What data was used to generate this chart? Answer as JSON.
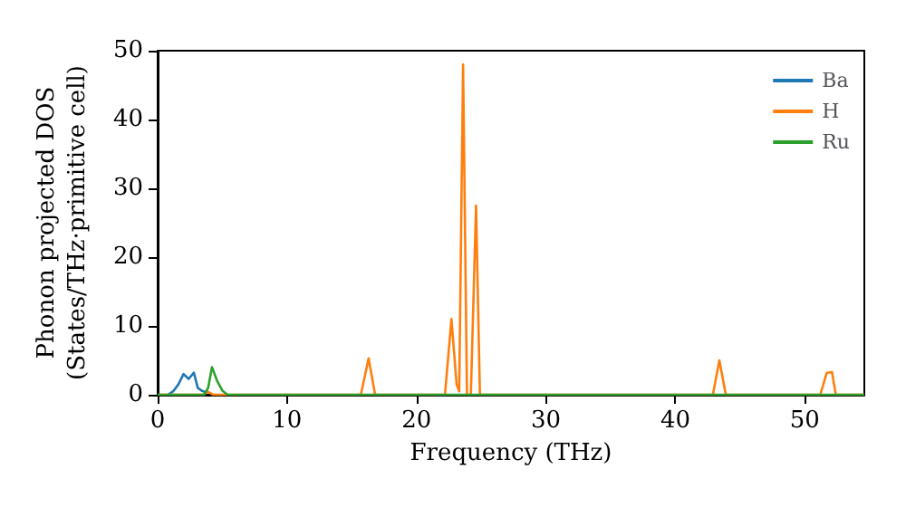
{
  "chart_data": {
    "type": "line",
    "xlabel": "Frequency (THz)",
    "ylabel": "Phonon projected DOS\n(States/THz·primitive cell)",
    "xlim": [
      0,
      54.6
    ],
    "ylim": [
      0,
      50
    ],
    "xticks": [
      0,
      10,
      20,
      30,
      40,
      50
    ],
    "yticks": [
      0,
      10,
      20,
      30,
      40,
      50
    ],
    "grid": false,
    "legend": "top right",
    "marker": "none",
    "line_style": "solid",
    "series": [
      {
        "name": "Ba",
        "color": "#1f77b4",
        "x": [
          0.8,
          1.2,
          1.6,
          2.0,
          2.4,
          2.8,
          3.1,
          3.4,
          3.8
        ],
        "values": [
          0,
          0.5,
          1.5,
          3.0,
          2.3,
          3.2,
          1.0,
          0.6,
          0.3
        ]
      },
      {
        "name": "H",
        "color": "#ff7f0e",
        "x": [
          0,
          3.5,
          3.9,
          4.3,
          15.7,
          16.3,
          16.8,
          22.2,
          22.7,
          23.1,
          23.3,
          23.6,
          23.9,
          24.2,
          24.6,
          24.9,
          25.2,
          42.9,
          43.4,
          43.9,
          51.2,
          51.7,
          52.1,
          52.4,
          54.6
        ],
        "values": [
          0,
          0,
          0.4,
          0,
          0,
          5.3,
          0,
          0,
          11,
          1.5,
          0.5,
          48,
          0,
          0,
          27.5,
          0,
          0,
          0,
          5,
          0,
          0,
          3.2,
          3.3,
          0,
          0
        ]
      },
      {
        "name": "Ru",
        "color": "#2ca02c",
        "x": [
          0,
          3.6,
          3.9,
          4.2,
          4.6,
          5.0,
          5.4,
          54.6
        ],
        "values": [
          0,
          0,
          1.0,
          4.0,
          2.0,
          0.6,
          0,
          0
        ]
      }
    ]
  }
}
